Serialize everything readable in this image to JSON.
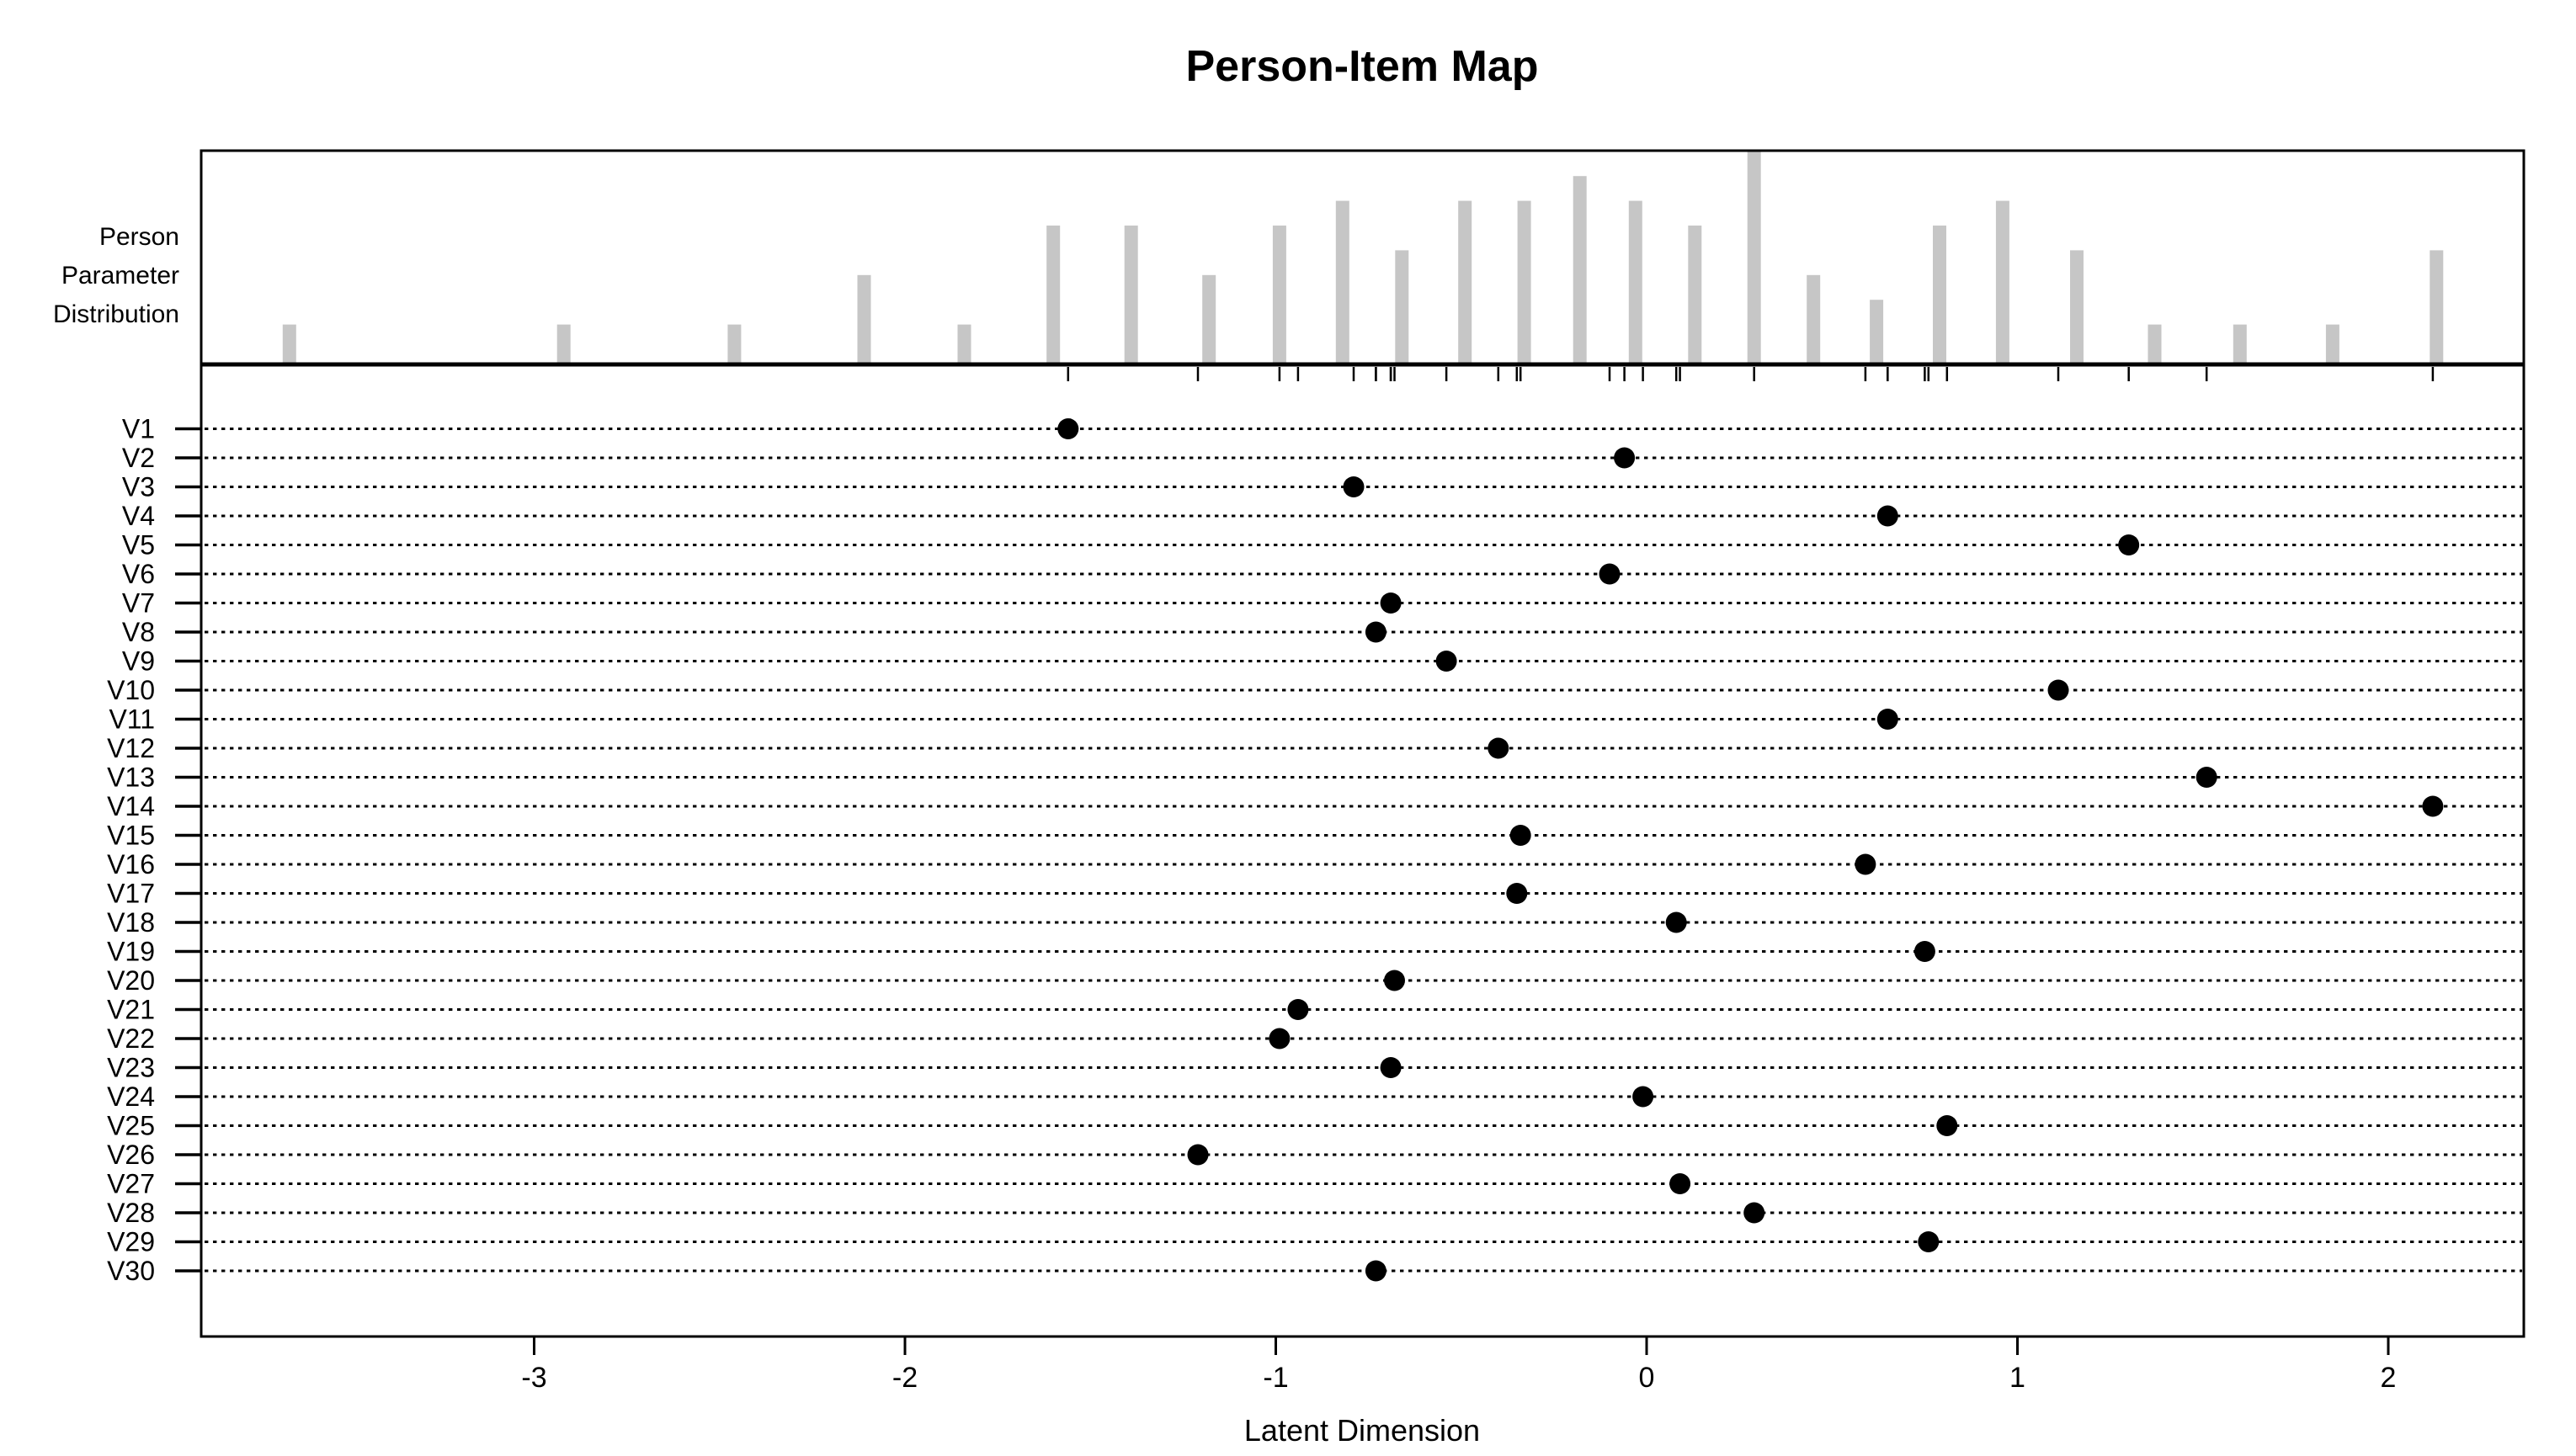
{
  "title": "Person-Item Map",
  "colors": {
    "background": "#ffffff",
    "ink": "#000000",
    "histogram_bar_fill": "#c6c6c6"
  },
  "chart_data": {
    "type": "person-item-map",
    "title": "Person-Item Map",
    "x_axis": {
      "label": "Latent Dimension",
      "ticks": [
        -3,
        -2,
        -1,
        0,
        1,
        2
      ],
      "range": [
        -3.9,
        2.36
      ]
    },
    "person_panel": {
      "type": "histogram",
      "label_lines": [
        "Person",
        "Parameter",
        "Distribution"
      ],
      "value_unit": "latent dimension (theta)",
      "count_scale_max": 8,
      "bars": [
        {
          "x": -3.66,
          "count": 1
        },
        {
          "x": -2.92,
          "count": 1
        },
        {
          "x": -2.46,
          "count": 1
        },
        {
          "x": -2.11,
          "count": 3
        },
        {
          "x": -1.84,
          "count": 1
        },
        {
          "x": -1.6,
          "count": 5
        },
        {
          "x": -1.39,
          "count": 5
        },
        {
          "x": -1.18,
          "count": 3
        },
        {
          "x": -0.99,
          "count": 5
        },
        {
          "x": -0.82,
          "count": 6
        },
        {
          "x": -0.66,
          "count": 4
        },
        {
          "x": -0.49,
          "count": 6
        },
        {
          "x": -0.33,
          "count": 6
        },
        {
          "x": -0.18,
          "count": 7
        },
        {
          "x": -0.03,
          "count": 6
        },
        {
          "x": 0.13,
          "count": 5
        },
        {
          "x": 0.29,
          "count": 8
        },
        {
          "x": 0.45,
          "count": 3
        },
        {
          "x": 0.62,
          "count": 2
        },
        {
          "x": 0.79,
          "count": 5
        },
        {
          "x": 0.96,
          "count": 6
        },
        {
          "x": 1.16,
          "count": 4
        },
        {
          "x": 1.37,
          "count": 1
        },
        {
          "x": 1.6,
          "count": 1
        },
        {
          "x": 1.85,
          "count": 1
        },
        {
          "x": 2.13,
          "count": 4
        }
      ]
    },
    "item_panel": {
      "type": "dot",
      "rug_note": "tick marks under the panel divider mark each item location",
      "items": [
        {
          "label": "V1",
          "location": -1.56
        },
        {
          "label": "V2",
          "location": -0.06
        },
        {
          "label": "V3",
          "location": -0.79
        },
        {
          "label": "V4",
          "location": 0.65
        },
        {
          "label": "V5",
          "location": 1.3
        },
        {
          "label": "V6",
          "location": -0.1
        },
        {
          "label": "V7",
          "location": -0.69
        },
        {
          "label": "V8",
          "location": -0.73
        },
        {
          "label": "V9",
          "location": -0.54
        },
        {
          "label": "V10",
          "location": 1.11
        },
        {
          "label": "V11",
          "location": 0.65
        },
        {
          "label": "V12",
          "location": -0.4
        },
        {
          "label": "V13",
          "location": 1.51
        },
        {
          "label": "V14",
          "location": 2.12
        },
        {
          "label": "V15",
          "location": -0.34
        },
        {
          "label": "V16",
          "location": 0.59
        },
        {
          "label": "V17",
          "location": -0.35
        },
        {
          "label": "V18",
          "location": 0.08
        },
        {
          "label": "V19",
          "location": 0.75
        },
        {
          "label": "V20",
          "location": -0.68
        },
        {
          "label": "V21",
          "location": -0.94
        },
        {
          "label": "V22",
          "location": -0.99
        },
        {
          "label": "V23",
          "location": -0.69
        },
        {
          "label": "V24",
          "location": -0.01
        },
        {
          "label": "V25",
          "location": 0.81
        },
        {
          "label": "V26",
          "location": -1.21
        },
        {
          "label": "V27",
          "location": 0.09
        },
        {
          "label": "V28",
          "location": 0.29
        },
        {
          "label": "V29",
          "location": 0.76
        },
        {
          "label": "V30",
          "location": -0.73
        }
      ]
    }
  }
}
